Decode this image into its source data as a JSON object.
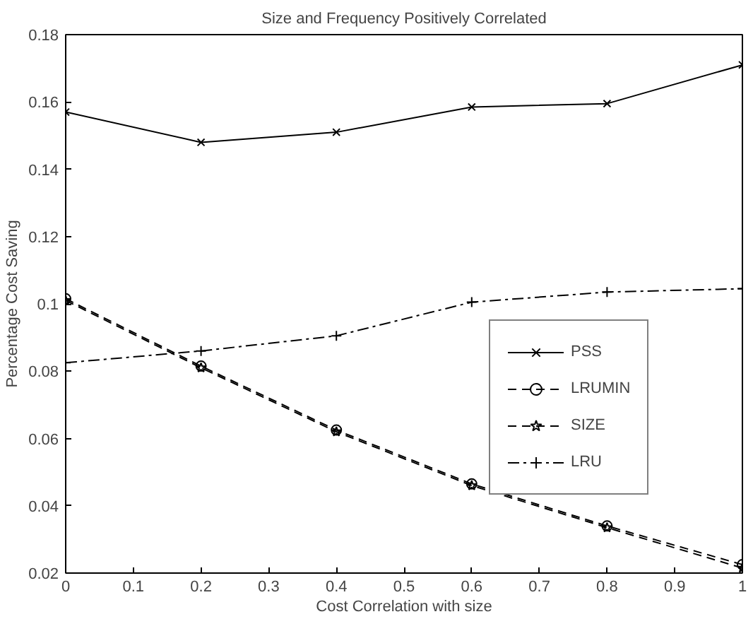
{
  "chart_data": {
    "type": "line",
    "title": "Size and Frequency Positively Correlated",
    "xlabel": "Cost Correlation with size",
    "ylabel": "Percentage Cost Saving",
    "x": [
      0,
      0.2,
      0.4,
      0.6,
      0.8,
      1
    ],
    "xlim": [
      0,
      1
    ],
    "xticks": [
      0,
      0.1,
      0.2,
      0.3,
      0.4,
      0.5,
      0.6,
      0.7,
      0.8,
      0.9,
      1
    ],
    "ylim": [
      0.02,
      0.18
    ],
    "yticks": [
      0.02,
      0.04,
      0.06,
      0.08,
      0.1,
      0.12,
      0.14,
      0.16,
      0.18
    ],
    "grid": false,
    "legend": "right",
    "series": [
      {
        "name": "PSS",
        "color": "#000000",
        "marker": "x",
        "line_style": "solid",
        "values": [
          0.157,
          0.148,
          0.151,
          0.1585,
          0.1595,
          0.171
        ]
      },
      {
        "name": "LRUMIN",
        "color": "#000000",
        "marker": "circle",
        "line_style": "dashed",
        "values": [
          0.1015,
          0.0815,
          0.0625,
          0.0465,
          0.034,
          0.0225
        ]
      },
      {
        "name": "SIZE",
        "color": "#000000",
        "marker": "star",
        "line_style": "dashed",
        "values": [
          0.101,
          0.081,
          0.062,
          0.046,
          0.0335,
          0.0215
        ]
      },
      {
        "name": "LRU",
        "color": "#000000",
        "marker": "cross",
        "line_style": "dashdot",
        "values": [
          0.0825,
          0.086,
          0.0905,
          0.1005,
          0.1035,
          0.1045
        ]
      }
    ]
  }
}
